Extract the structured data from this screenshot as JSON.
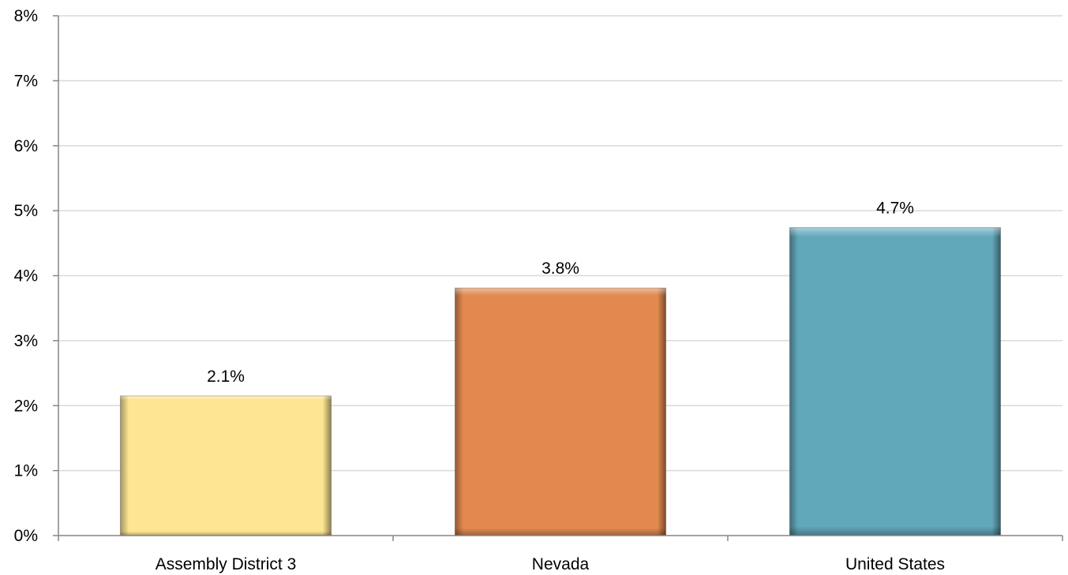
{
  "chart_data": {
    "type": "bar",
    "categories": [
      "Assembly District 3",
      "Nevada",
      "United States"
    ],
    "values": [
      2.15,
      3.81,
      4.74
    ],
    "data_labels": [
      "2.1%",
      "3.8%",
      "4.7%"
    ],
    "colors": [
      "#FDE593",
      "#E2894F",
      "#62A8BB"
    ],
    "title": "",
    "xlabel": "",
    "ylabel": "",
    "ylim": [
      0,
      8
    ],
    "y_ticks": [
      0,
      1,
      2,
      3,
      4,
      5,
      6,
      7,
      8
    ],
    "y_tick_labels": [
      "0%",
      "1%",
      "2%",
      "3%",
      "4%",
      "5%",
      "6%",
      "7%",
      "8%"
    ],
    "grid": true,
    "legend": "none"
  }
}
